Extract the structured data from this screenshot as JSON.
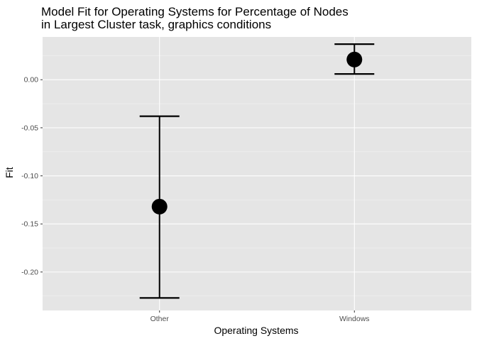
{
  "chart_data": {
    "type": "errorbar",
    "title_lines": [
      "Model Fit for Operating Systems for Percentage of Nodes",
      "in Largest Cluster task, graphics conditions"
    ],
    "xlabel": "Operating Systems",
    "ylabel": "Fit",
    "categories": [
      "Other",
      "Windows"
    ],
    "points": [
      {
        "category": "Other",
        "fit": -0.132,
        "lower": -0.227,
        "upper": -0.038
      },
      {
        "category": "Windows",
        "fit": 0.021,
        "lower": 0.006,
        "upper": 0.037
      }
    ],
    "ylim": [
      -0.24,
      0.0445
    ],
    "y_ticks": [
      {
        "value": 0.0,
        "label": "0.00"
      },
      {
        "value": -0.05,
        "label": "-0.05"
      },
      {
        "value": -0.1,
        "label": "-0.10"
      },
      {
        "value": -0.15,
        "label": "-0.15"
      },
      {
        "value": -0.2,
        "label": "-0.20"
      }
    ],
    "grid": true,
    "colors": {
      "panel": "#e5e5e5",
      "grid_major": "#ffffff",
      "grid_minor": "#f0f0f0",
      "marks": "#000000"
    }
  }
}
